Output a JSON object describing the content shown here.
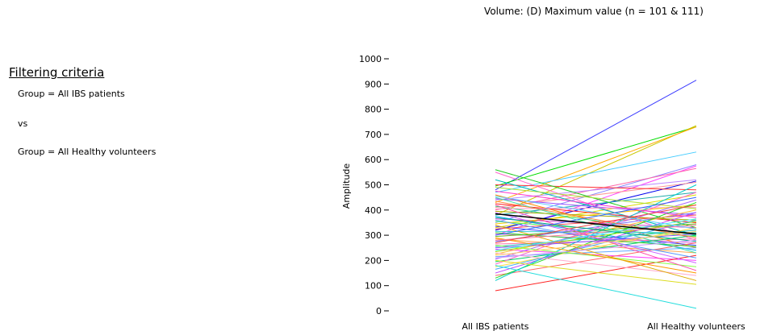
{
  "filter": {
    "heading": "Filtering criteria",
    "lines": [
      "Group = All IBS patients",
      "vs",
      "Group = All Healthy volunteers"
    ]
  },
  "chart_data": {
    "type": "line",
    "title": "Volume: (D) Maximum value (n = 101 & 111)",
    "xlabel": "",
    "ylabel": "Amplitude",
    "categories": [
      "All IBS patients",
      "All Healthy volunteers"
    ],
    "ylim": [
      0,
      1000
    ],
    "yticks": [
      0,
      100,
      200,
      300,
      400,
      500,
      600,
      700,
      800,
      900,
      1000
    ],
    "grid": false,
    "legend": "none",
    "mean_series": {
      "values": [
        385,
        305
      ],
      "color": "#000000"
    },
    "series": [
      {
        "values": [
          480,
          915
        ],
        "color": "#3b3bff"
      },
      {
        "values": [
          495,
          730
        ],
        "color": "#00dd00"
      },
      {
        "values": [
          380,
          735
        ],
        "color": "#c8c800"
      },
      {
        "values": [
          430,
          730
        ],
        "color": "#ffaa00"
      },
      {
        "values": [
          470,
          630
        ],
        "color": "#44ccff"
      },
      {
        "values": [
          350,
          580
        ],
        "color": "#8888ff"
      },
      {
        "values": [
          300,
          575
        ],
        "color": "#ff44ff"
      },
      {
        "values": [
          400,
          565
        ],
        "color": "#ff66aa"
      },
      {
        "values": [
          440,
          520
        ],
        "color": "#bb88ff"
      },
      {
        "values": [
          320,
          515
        ],
        "color": "#0000ee"
      },
      {
        "values": [
          410,
          510
        ],
        "color": "#ff9999"
      },
      {
        "values": [
          500,
          480
        ],
        "color": "#ff3333"
      },
      {
        "values": [
          380,
          470
        ],
        "color": "#22aaaa"
      },
      {
        "values": [
          330,
          460
        ],
        "color": "#dddd00"
      },
      {
        "values": [
          560,
          330
        ],
        "color": "#22cc22"
      },
      {
        "values": [
          550,
          280
        ],
        "color": "#ff66cc"
      },
      {
        "values": [
          520,
          300
        ],
        "color": "#00bbbb"
      },
      {
        "values": [
          460,
          250
        ],
        "color": "#ff8800"
      },
      {
        "values": [
          445,
          380
        ],
        "color": "#9955ff"
      },
      {
        "values": [
          425,
          350
        ],
        "color": "#ff2222"
      },
      {
        "values": [
          415,
          300
        ],
        "color": "#33dd88"
      },
      {
        "values": [
          405,
          410
        ],
        "color": "#ff99cc"
      },
      {
        "values": [
          395,
          360
        ],
        "color": "#aaaa00"
      },
      {
        "values": [
          375,
          240
        ],
        "color": "#00aaff"
      },
      {
        "values": [
          365,
          330
        ],
        "color": "#cc44cc"
      },
      {
        "values": [
          355,
          295
        ],
        "color": "#55ff55"
      },
      {
        "values": [
          345,
          420
        ],
        "color": "#ffcc00"
      },
      {
        "values": [
          335,
          260
        ],
        "color": "#4444ff"
      },
      {
        "values": [
          325,
          380
        ],
        "color": "#ff5555"
      },
      {
        "values": [
          315,
          310
        ],
        "color": "#33cccc"
      },
      {
        "values": [
          305,
          270
        ],
        "color": "#dd77dd"
      },
      {
        "values": [
          295,
          345
        ],
        "color": "#66bb22"
      },
      {
        "values": [
          285,
          230
        ],
        "color": "#ffaa55"
      },
      {
        "values": [
          275,
          390
        ],
        "color": "#7777ff"
      },
      {
        "values": [
          265,
          285
        ],
        "color": "#ff77aa"
      },
      {
        "values": [
          255,
          320
        ],
        "color": "#22bbbb"
      },
      {
        "values": [
          245,
          200
        ],
        "color": "#ff44ff"
      },
      {
        "values": [
          235,
          355
        ],
        "color": "#99dd00"
      },
      {
        "values": [
          225,
          400
        ],
        "color": "#ffbb33"
      },
      {
        "values": [
          215,
          250
        ],
        "color": "#66aaff"
      },
      {
        "values": [
          205,
          440
        ],
        "color": "#aa66ff"
      },
      {
        "values": [
          195,
          300
        ],
        "color": "#00cc66"
      },
      {
        "values": [
          185,
          470
        ],
        "color": "#ff66cc"
      },
      {
        "values": [
          175,
          330
        ],
        "color": "#ffdd44"
      },
      {
        "values": [
          165,
          360
        ],
        "color": "#44aaff"
      },
      {
        "values": [
          150,
          390
        ],
        "color": "#bb44ff"
      },
      {
        "values": [
          140,
          270
        ],
        "color": "#ff6666"
      },
      {
        "values": [
          130,
          430
        ],
        "color": "#22dd22"
      },
      {
        "values": [
          120,
          500
        ],
        "color": "#00cccc"
      },
      {
        "values": [
          80,
          220
        ],
        "color": "#ff2222"
      },
      {
        "values": [
          180,
          10
        ],
        "color": "#22dddd"
      },
      {
        "values": [
          200,
          105
        ],
        "color": "#dddd22"
      },
      {
        "values": [
          230,
          140
        ],
        "color": "#ffaacc"
      },
      {
        "values": [
          260,
          175
        ],
        "color": "#88ff44"
      },
      {
        "values": [
          290,
          150
        ],
        "color": "#ff9900"
      },
      {
        "values": [
          360,
          210
        ],
        "color": "#5599ff"
      },
      {
        "values": [
          390,
          190
        ],
        "color": "#cc66ff"
      },
      {
        "values": [
          420,
          160
        ],
        "color": "#ff44aa"
      },
      {
        "values": [
          450,
          230
        ],
        "color": "#44ddaa"
      },
      {
        "values": [
          340,
          120
        ],
        "color": "#ddaa00"
      },
      {
        "values": [
          310,
          255
        ],
        "color": "#33cc33"
      },
      {
        "values": [
          280,
          340
        ],
        "color": "#ff7799"
      },
      {
        "values": [
          250,
          305
        ],
        "color": "#8855ff"
      },
      {
        "values": [
          370,
          275
        ],
        "color": "#00aa88"
      },
      {
        "values": [
          435,
          290
        ],
        "color": "#ff8844"
      },
      {
        "values": [
          455,
          325
        ],
        "color": "#66ccff"
      },
      {
        "values": [
          475,
          370
        ],
        "color": "#ff33cc"
      },
      {
        "values": [
          490,
          405
        ],
        "color": "#aadd33"
      },
      {
        "values": [
          300,
          450
        ],
        "color": "#3366ff"
      },
      {
        "values": [
          270,
          420
        ],
        "color": "#ee4444"
      },
      {
        "values": [
          240,
          365
        ],
        "color": "#44eeee"
      },
      {
        "values": [
          220,
          315
        ],
        "color": "#ffcc66"
      },
      {
        "values": [
          210,
          280
        ],
        "color": "#cc99ff"
      }
    ]
  }
}
